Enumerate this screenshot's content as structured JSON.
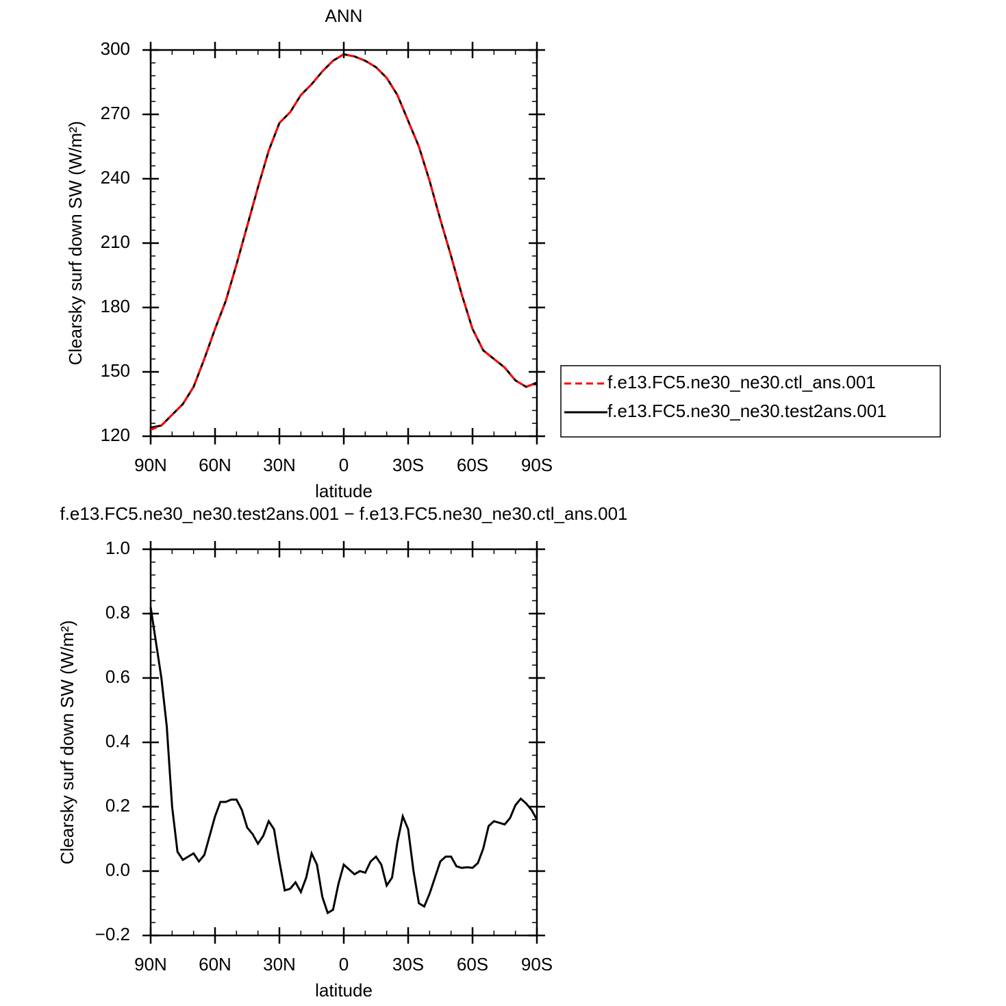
{
  "chart_data": [
    {
      "type": "line",
      "title": "ANN",
      "xlabel": "latitude",
      "ylabel": "Clearsky surf down SW (W/m²)",
      "x": [
        90,
        85,
        80,
        75,
        70,
        65,
        60,
        55,
        50,
        45,
        40,
        35,
        30,
        25,
        20,
        15,
        10,
        5,
        0,
        -5,
        -10,
        -15,
        -20,
        -25,
        -30,
        -35,
        -40,
        -45,
        -50,
        -55,
        -60,
        -65,
        -70,
        -75,
        -80,
        -85,
        -90
      ],
      "series": [
        {
          "name": "f.e13.FC5.ne30_ne30.ctl_ans.001",
          "color": "#ff0000",
          "linestyle": "dashed",
          "values": [
            123,
            125,
            130,
            135,
            143,
            156,
            170,
            183,
            200,
            218,
            236,
            253,
            266,
            271,
            279,
            284,
            290,
            295,
            298,
            297,
            295,
            292,
            287,
            279,
            267,
            255,
            239,
            221,
            204,
            186,
            170,
            160,
            156,
            152,
            146,
            143,
            145
          ]
        },
        {
          "name": "f.e13.FC5.ne30_ne30.test2ans.001",
          "color": "#000000",
          "linestyle": "solid",
          "values": [
            124,
            125,
            130,
            135,
            143,
            156,
            170,
            183,
            200,
            218,
            236,
            253,
            266,
            271,
            279,
            284,
            290,
            295,
            298,
            297,
            295,
            292,
            287,
            279,
            267,
            255,
            239,
            221,
            204,
            186,
            170,
            160,
            156,
            152,
            146,
            143,
            145
          ]
        }
      ],
      "xlim": [
        90,
        -90
      ],
      "xticks": [
        {
          "value": 90,
          "label": "90N"
        },
        {
          "value": 60,
          "label": "60N"
        },
        {
          "value": 30,
          "label": "30N"
        },
        0,
        {
          "value": -30,
          "label": "30S"
        },
        {
          "value": -60,
          "label": "60S"
        },
        {
          "value": -90,
          "label": "90S"
        }
      ],
      "ylim": [
        120,
        300
      ],
      "yticks": [
        120,
        150,
        180,
        210,
        240,
        270,
        300
      ],
      "legend": "right"
    },
    {
      "type": "line",
      "title": "f.e13.FC5.ne30_ne30.test2ans.001 − f.e13.FC5.ne30_ne30.ctl_ans.001",
      "xlabel": "latitude",
      "ylabel": "Clearsky surf down SW (W/m²)",
      "x": [
        90,
        87.5,
        85,
        82.5,
        80,
        77.5,
        75,
        72.5,
        70,
        67.5,
        65,
        62.5,
        60,
        57.5,
        55,
        52.5,
        50,
        47.5,
        45,
        42.5,
        40,
        37.5,
        35,
        32.5,
        30,
        27.5,
        25,
        22.5,
        20,
        17.5,
        15,
        12.5,
        10,
        7.5,
        5,
        2.5,
        0,
        -2.5,
        -5,
        -7.5,
        -10,
        -12.5,
        -15,
        -17.5,
        -20,
        -22.5,
        -25,
        -27.5,
        -30,
        -32.5,
        -35,
        -37.5,
        -40,
        -42.5,
        -45,
        -47.5,
        -50,
        -52.5,
        -55,
        -57.5,
        -60,
        -62.5,
        -65,
        -67.5,
        -70,
        -72.5,
        -75,
        -77.5,
        -80,
        -82.5,
        -85,
        -87.5,
        -90
      ],
      "series": [
        {
          "color": "#000000",
          "linestyle": "solid",
          "values": [
            0.82,
            0.71,
            0.6,
            0.45,
            0.2,
            0.06,
            0.035,
            0.045,
            0.055,
            0.03,
            0.05,
            0.11,
            0.17,
            0.215,
            0.215,
            0.222,
            0.222,
            0.19,
            0.135,
            0.115,
            0.085,
            0.11,
            0.155,
            0.13,
            0.03,
            -0.06,
            -0.055,
            -0.035,
            -0.065,
            -0.02,
            0.055,
            0.02,
            -0.08,
            -0.13,
            -0.12,
            -0.04,
            0.02,
            0.005,
            -0.01,
            0.0,
            -0.005,
            0.03,
            0.045,
            0.02,
            -0.045,
            -0.02,
            0.09,
            0.17,
            0.13,
            0.0,
            -0.1,
            -0.11,
            -0.07,
            -0.02,
            0.03,
            0.045,
            0.045,
            0.015,
            0.01,
            0.012,
            0.01,
            0.025,
            0.07,
            0.14,
            0.155,
            0.15,
            0.145,
            0.165,
            0.205,
            0.225,
            0.21,
            0.19,
            0.16
          ]
        }
      ],
      "xlim": [
        90,
        -90
      ],
      "xticks": [
        {
          "value": 90,
          "label": "90N"
        },
        {
          "value": 60,
          "label": "60N"
        },
        {
          "value": 30,
          "label": "30N"
        },
        0,
        {
          "value": -30,
          "label": "30S"
        },
        {
          "value": -60,
          "label": "60S"
        },
        {
          "value": -90,
          "label": "90S"
        }
      ],
      "ylim": [
        -0.2,
        1.0
      ],
      "yticks": [
        {
          "value": -0.2,
          "label": "−0.2"
        },
        {
          "value": 0,
          "label": "0.0"
        },
        {
          "value": 0.2,
          "label": "0.2"
        },
        {
          "value": 0.4,
          "label": "0.4"
        },
        {
          "value": 0.6,
          "label": "0.6"
        },
        {
          "value": 0.8,
          "label": "0.8"
        },
        {
          "value": 1.0,
          "label": "1.0"
        }
      ]
    }
  ]
}
